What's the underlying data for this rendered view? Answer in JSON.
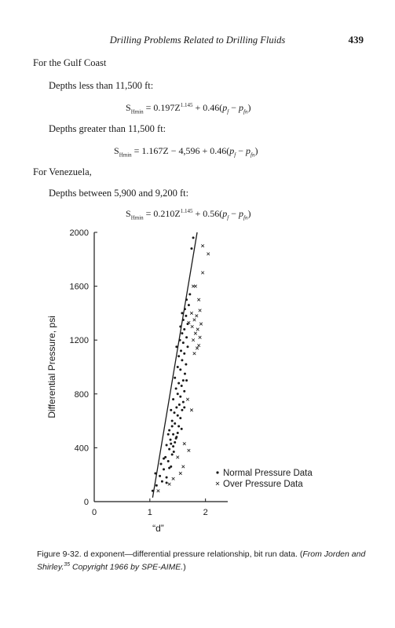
{
  "header": {
    "title": "Drilling Problems Related to Drilling Fluids",
    "page_number": "439"
  },
  "body": {
    "gulf_coast": "For the Gulf Coast",
    "depth_less": "Depths less than 11,500 ft:",
    "eq1": {
      "lhs_main": "S",
      "lhs_sub": "Hmin",
      "a": " = 0.197Z",
      "exp": "1.145",
      "b": " + 0.46(",
      "p1": "p",
      "p1_sub": "f",
      "minus": " − ",
      "p2": "p",
      "p2_sub": "fn",
      "close": ")"
    },
    "depth_greater": "Depths greater than 11,500 ft:",
    "eq2": {
      "lhs_main": "S",
      "lhs_sub": "Hmin",
      "a": " = 1.167Z − 4,596 + 0.46(",
      "p1": "p",
      "p1_sub": "f",
      "minus": " − ",
      "p2": "p",
      "p2_sub": "fn",
      "close": ")"
    },
    "venezuela": "For Venezuela,",
    "depth_between": "Depths between 5,900 and 9,200 ft:",
    "eq3": {
      "lhs_main": "S",
      "lhs_sub": "Hmin",
      "a": " = 0.210Z",
      "exp": "1.145",
      "b": " + 0.56(",
      "p1": "p",
      "p1_sub": "f",
      "minus": " − ",
      "p2": "p",
      "p2_sub": "fn",
      "close": ")"
    }
  },
  "chart_data": {
    "type": "scatter",
    "xlabel": "“d”",
    "ylabel": "Differential Pressure, psi",
    "xlim": [
      0,
      2.4
    ],
    "ylim": [
      0,
      2000
    ],
    "x_ticks": [
      0,
      1,
      2
    ],
    "y_ticks": [
      0,
      400,
      800,
      1200,
      1600,
      2000
    ],
    "legend_position": "bottom-right",
    "series": [
      {
        "name": "Normal Pressure Data",
        "marker": "dot",
        "points": [
          [
            1.05,
            80
          ],
          [
            1.12,
            120
          ],
          [
            1.18,
            190
          ],
          [
            1.1,
            210
          ],
          [
            1.25,
            240
          ],
          [
            1.3,
            180
          ],
          [
            1.2,
            280
          ],
          [
            1.33,
            300
          ],
          [
            1.38,
            260
          ],
          [
            1.28,
            330
          ],
          [
            1.4,
            350
          ],
          [
            1.35,
            390
          ],
          [
            1.42,
            410
          ],
          [
            1.3,
            420
          ],
          [
            1.45,
            440
          ],
          [
            1.37,
            460
          ],
          [
            1.48,
            480
          ],
          [
            1.42,
            500
          ],
          [
            1.5,
            510
          ],
          [
            1.35,
            530
          ],
          [
            1.52,
            560
          ],
          [
            1.45,
            580
          ],
          [
            1.4,
            600
          ],
          [
            1.55,
            620
          ],
          [
            1.5,
            640
          ],
          [
            1.44,
            660
          ],
          [
            1.58,
            680
          ],
          [
            1.48,
            700
          ],
          [
            1.53,
            720
          ],
          [
            1.6,
            740
          ],
          [
            1.42,
            760
          ],
          [
            1.55,
            780
          ],
          [
            1.5,
            800
          ],
          [
            1.62,
            820
          ],
          [
            1.47,
            840
          ],
          [
            1.57,
            860
          ],
          [
            1.52,
            880
          ],
          [
            1.6,
            900
          ],
          [
            1.45,
            920
          ],
          [
            1.63,
            950
          ],
          [
            1.55,
            980
          ],
          [
            1.5,
            1000
          ],
          [
            1.65,
            1020
          ],
          [
            1.58,
            1050
          ],
          [
            1.52,
            1080
          ],
          [
            1.62,
            1100
          ],
          [
            1.56,
            1120
          ],
          [
            1.68,
            1150
          ],
          [
            1.6,
            1180
          ],
          [
            1.54,
            1200
          ],
          [
            1.66,
            1220
          ],
          [
            1.58,
            1250
          ],
          [
            1.62,
            1280
          ],
          [
            1.55,
            1300
          ],
          [
            1.68,
            1320
          ],
          [
            1.6,
            1350
          ],
          [
            1.65,
            1380
          ],
          [
            1.58,
            1400
          ],
          [
            1.63,
            1430
          ],
          [
            1.7,
            1460
          ],
          [
            1.66,
            1500
          ],
          [
            1.72,
            1540
          ],
          [
            1.75,
            1880
          ],
          [
            1.78,
            1960
          ],
          [
            1.38,
            430
          ],
          [
            1.43,
            370
          ],
          [
            1.25,
            320
          ],
          [
            1.47,
            470
          ],
          [
            1.33,
            500
          ],
          [
            1.57,
            540
          ],
          [
            1.4,
            560
          ],
          [
            1.62,
            700
          ],
          [
            1.38,
            680
          ],
          [
            1.66,
            900
          ],
          [
            1.48,
            1150
          ],
          [
            1.35,
            250
          ],
          [
            1.22,
            150
          ],
          [
            1.3,
            140
          ]
        ]
      },
      {
        "name": "Over Pressure Data",
        "marker": "x",
        "points": [
          [
            1.15,
            80
          ],
          [
            1.35,
            130
          ],
          [
            1.42,
            170
          ],
          [
            1.55,
            210
          ],
          [
            1.6,
            260
          ],
          [
            1.5,
            330
          ],
          [
            1.7,
            380
          ],
          [
            1.62,
            430
          ],
          [
            1.75,
            680
          ],
          [
            1.68,
            760
          ],
          [
            1.8,
            1100
          ],
          [
            1.85,
            1140
          ],
          [
            1.88,
            1160
          ],
          [
            1.78,
            1200
          ],
          [
            1.9,
            1220
          ],
          [
            1.82,
            1250
          ],
          [
            1.86,
            1280
          ],
          [
            1.76,
            1300
          ],
          [
            1.92,
            1320
          ],
          [
            1.8,
            1350
          ],
          [
            1.7,
            1330
          ],
          [
            1.84,
            1380
          ],
          [
            1.75,
            1400
          ],
          [
            1.9,
            1420
          ],
          [
            1.88,
            1500
          ],
          [
            1.78,
            1600
          ],
          [
            1.82,
            1600
          ],
          [
            1.95,
            1700
          ],
          [
            2.05,
            1840
          ],
          [
            1.95,
            1900
          ]
        ]
      }
    ],
    "trend_line": [
      [
        1.05,
        30
      ],
      [
        1.85,
        2000
      ]
    ]
  },
  "caption": {
    "main": "Figure 9-32. d exponent—differential pressure relationship, bit run data. (",
    "italic1": "From Jorden and Shirley.",
    "ref": "35",
    "italic2": " Copyright 1966 by SPE-AIME.",
    "close": ")"
  }
}
